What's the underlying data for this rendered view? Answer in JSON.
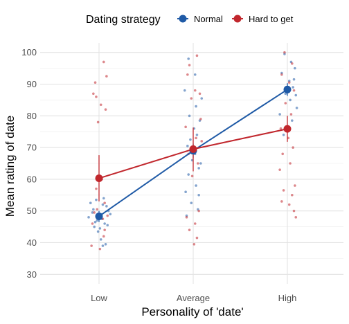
{
  "chart_data": {
    "type": "line",
    "title": "",
    "xlabel": "Personality of 'date'",
    "ylabel": "Mean rating of date",
    "categories": [
      "Low",
      "Average",
      "High"
    ],
    "ylim": [
      27,
      103
    ],
    "yticks": [
      30,
      40,
      50,
      60,
      70,
      80,
      90,
      100
    ],
    "grid": true,
    "legend": {
      "title": "Dating strategy",
      "placement": "top"
    },
    "series": [
      {
        "name": "Normal",
        "color": "#1f5aa6",
        "means": [
          48.3,
          69.0,
          88.3
        ],
        "error_low": [
          46.5,
          66.8,
          86.3
        ],
        "error_high": [
          50.0,
          71.2,
          90.3
        ],
        "points": [
          [
            -0.03,
            53.5
          ],
          [
            0.04,
            52.0
          ],
          [
            -0.06,
            50.5
          ],
          [
            0.02,
            49.0
          ],
          [
            0.08,
            51.5
          ],
          [
            -0.02,
            47.0
          ],
          [
            0.06,
            46.0
          ],
          [
            -0.05,
            45.0
          ],
          [
            0.01,
            44.5
          ],
          [
            0.09,
            45.5
          ],
          [
            -0.07,
            49.5
          ],
          [
            0.03,
            47.5
          ],
          [
            0.1,
            50.0
          ],
          [
            -0.09,
            52.5
          ],
          [
            0.05,
            54.0
          ],
          [
            -0.01,
            43.5
          ],
          [
            0.02,
            41.0
          ],
          [
            0.07,
            39.5
          ],
          [
            0.04,
            39.0
          ],
          [
            -0.04,
            46.5
          ],
          [
            0.12,
            49.0
          ],
          [
            -0.11,
            48.0
          ],
          [
            -0.03,
            72.5
          ],
          [
            0.04,
            74.0
          ],
          [
            -0.06,
            70.5
          ],
          [
            0.02,
            68.0
          ],
          [
            0.08,
            65.0
          ],
          [
            -0.05,
            61.5
          ],
          [
            0.03,
            58.0
          ],
          [
            -0.08,
            56.0
          ],
          [
            0.06,
            55.0
          ],
          [
            -0.02,
            52.5
          ],
          [
            0.05,
            50.5
          ],
          [
            -0.07,
            48.5
          ],
          [
            0.01,
            76.0
          ],
          [
            0.07,
            78.5
          ],
          [
            -0.04,
            80.0
          ],
          [
            0.03,
            83.0
          ],
          [
            0.09,
            85.5
          ],
          [
            -0.09,
            88.0
          ],
          [
            0.02,
            93.0
          ],
          [
            -0.05,
            98.0
          ],
          [
            0.06,
            63.5
          ],
          [
            -0.01,
            66.0
          ],
          [
            -0.03,
            99.5
          ],
          [
            0.04,
            97.0
          ],
          [
            0.08,
            95.0
          ],
          [
            -0.06,
            93.5
          ],
          [
            0.02,
            91.0
          ],
          [
            0.06,
            89.0
          ],
          [
            -0.02,
            87.0
          ],
          [
            0.03,
            85.0
          ],
          [
            0.1,
            82.5
          ],
          [
            -0.08,
            80.5
          ],
          [
            0.05,
            78.5
          ],
          [
            0.01,
            76.0
          ],
          [
            -0.04,
            74.0
          ],
          [
            0.07,
            91.5
          ],
          [
            0.09,
            86.5
          ]
        ]
      },
      {
        "name": "Hard to get",
        "color": "#c1272d",
        "means": [
          60.3,
          69.5,
          75.9
        ],
        "error_low": [
          53.0,
          62.5,
          71.8
        ],
        "error_high": [
          67.6,
          76.3,
          80.0
        ],
        "points": [
          [
            -0.04,
            90.5
          ],
          [
            0.05,
            97.0
          ],
          [
            0.08,
            92.5
          ],
          [
            -0.06,
            87.0
          ],
          [
            -0.03,
            86.0
          ],
          [
            0.02,
            83.5
          ],
          [
            0.07,
            82.0
          ],
          [
            -0.01,
            78.0
          ],
          [
            0.03,
            60.0
          ],
          [
            -0.05,
            49.5
          ],
          [
            0.04,
            47.5
          ],
          [
            -0.07,
            46.0
          ],
          [
            0.06,
            44.0
          ],
          [
            -0.02,
            50.5
          ],
          [
            0.09,
            48.5
          ],
          [
            -0.08,
            39.0
          ],
          [
            0.01,
            38.0
          ],
          [
            0.05,
            42.0
          ],
          [
            -0.03,
            57.0
          ],
          [
            0.06,
            52.5
          ],
          [
            -0.04,
            96.0
          ],
          [
            0.04,
            99.0
          ],
          [
            -0.06,
            93.0
          ],
          [
            0.02,
            88.0
          ],
          [
            0.07,
            87.0
          ],
          [
            -0.02,
            85.5
          ],
          [
            0.08,
            79.0
          ],
          [
            -0.08,
            76.5
          ],
          [
            0.03,
            73.0
          ],
          [
            -0.05,
            68.0
          ],
          [
            0.05,
            65.0
          ],
          [
            -0.01,
            61.0
          ],
          [
            0.06,
            50.0
          ],
          [
            -0.07,
            48.0
          ],
          [
            0.02,
            46.0
          ],
          [
            -0.04,
            44.0
          ],
          [
            0.04,
            41.5
          ],
          [
            0.01,
            39.5
          ],
          [
            0.09,
            72.0
          ],
          [
            -0.03,
            100.0
          ],
          [
            0.05,
            96.5
          ],
          [
            -0.06,
            93.0
          ],
          [
            0.02,
            90.5
          ],
          [
            0.07,
            88.0
          ],
          [
            -0.02,
            84.0
          ],
          [
            0.04,
            80.5
          ],
          [
            -0.07,
            76.0
          ],
          [
            0.01,
            73.0
          ],
          [
            0.06,
            70.0
          ],
          [
            -0.05,
            68.0
          ],
          [
            0.03,
            65.0
          ],
          [
            -0.08,
            63.0
          ],
          [
            0.08,
            58.0
          ],
          [
            -0.04,
            56.5
          ],
          [
            0.05,
            55.0
          ],
          [
            -0.06,
            53.0
          ],
          [
            0.02,
            52.0
          ],
          [
            0.07,
            50.0
          ],
          [
            0.09,
            48.0
          ]
        ]
      }
    ]
  }
}
